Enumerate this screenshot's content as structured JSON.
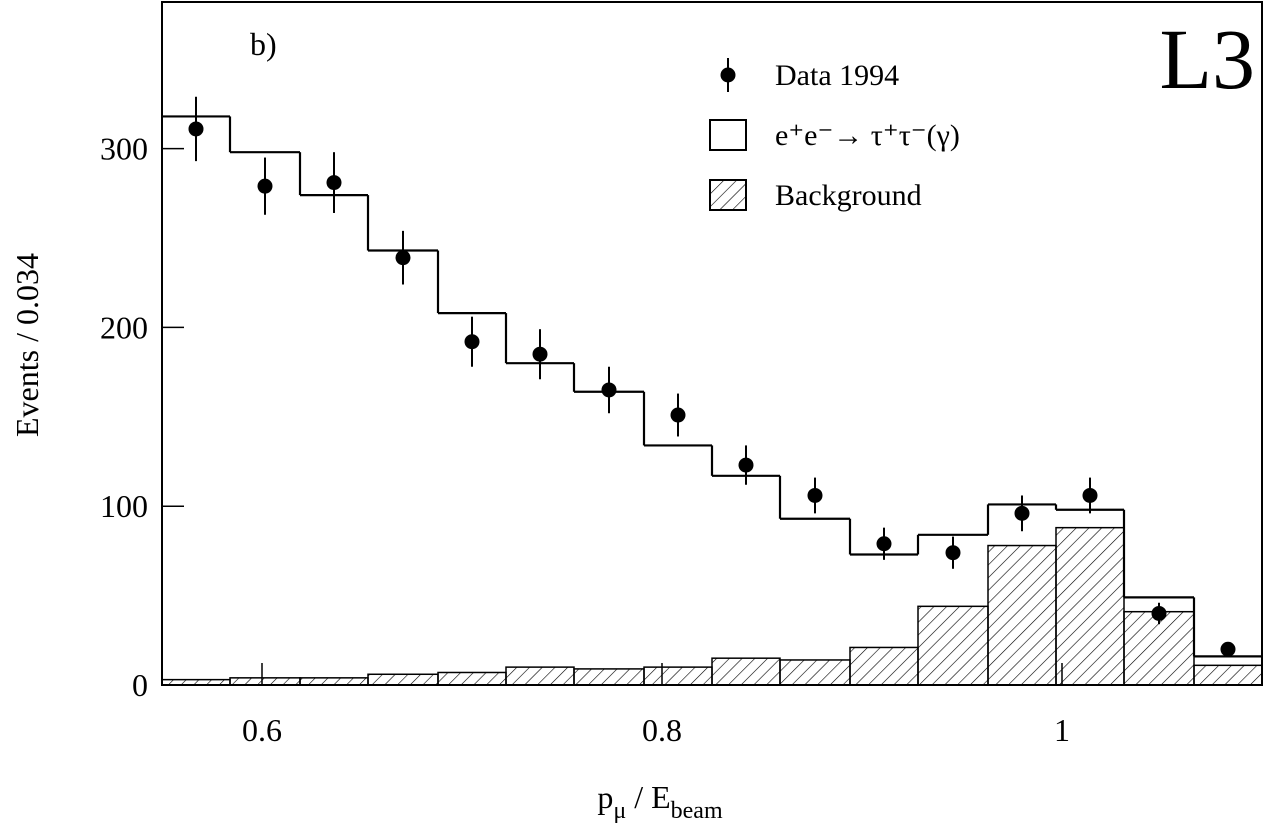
{
  "chart_data": {
    "type": "histogram",
    "annotations": [
      "b)",
      "L3"
    ],
    "x_label": [
      "p",
      "μ",
      " / E",
      "beam"
    ],
    "y_label": "Events / 0.034",
    "bins": [
      0.55,
      0.584,
      0.619,
      0.653,
      0.688,
      0.722,
      0.756,
      0.791,
      0.825,
      0.859,
      0.894,
      0.928,
      0.963,
      0.997,
      1.031,
      1.066,
      1.1
    ],
    "xlim": [
      0.55,
      1.1
    ],
    "xticks": [
      0.6,
      0.8,
      1
    ],
    "ylim": [
      0,
      382
    ],
    "yticks": [
      0,
      100,
      200,
      300
    ],
    "series": [
      {
        "name": "Data 1994",
        "color": "#000000",
        "style": "points",
        "values": [
          311,
          279,
          281,
          239,
          192,
          185,
          165,
          151,
          123,
          106,
          79,
          74,
          96,
          106,
          40,
          20
        ],
        "errors": [
          18,
          16,
          17,
          15,
          14,
          14,
          13,
          12,
          11,
          10,
          9,
          9,
          10,
          10,
          6,
          4
        ]
      },
      {
        "name": "e⁺e⁻→ τ⁺τ⁻(γ)",
        "color": "#000000",
        "style": "step",
        "values": [
          318,
          298,
          274,
          243,
          208,
          180,
          164,
          134,
          117,
          93,
          73,
          84,
          101,
          98,
          49,
          16
        ]
      },
      {
        "name": "Background",
        "color": "#000000",
        "style": "hatched",
        "values": [
          3,
          4,
          4,
          6,
          7,
          10,
          9,
          10,
          15,
          14,
          21,
          44,
          78,
          88,
          41,
          11
        ]
      }
    ]
  }
}
